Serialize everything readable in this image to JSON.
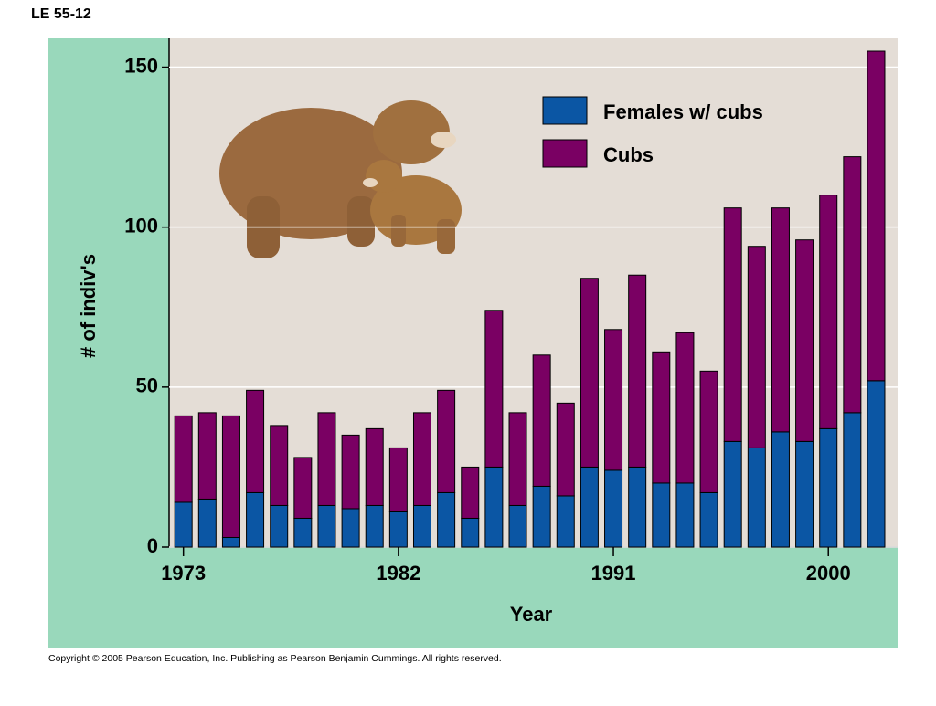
{
  "header": "LE 55-12",
  "footer": "Copyright ©  2005 Pearson Education, Inc. Publishing as Pearson Benjamin Cummings. All rights reserved.",
  "chart_data": {
    "type": "bar",
    "stacked": true,
    "x_label": "Year",
    "y_label": "# of indiv's",
    "x": [
      1973,
      1974,
      1975,
      1976,
      1977,
      1978,
      1979,
      1980,
      1981,
      1982,
      1983,
      1984,
      1985,
      1986,
      1987,
      1988,
      1989,
      1990,
      1991,
      1992,
      1993,
      1994,
      1995,
      1996,
      1997,
      1998,
      1999,
      2000,
      2001,
      2002
    ],
    "series": [
      {
        "name": "Females w/ cubs",
        "color": "#0b56a4",
        "values": [
          14,
          15,
          3,
          17,
          13,
          9,
          13,
          12,
          13,
          11,
          13,
          17,
          9,
          25,
          13,
          19,
          16,
          25,
          24,
          25,
          20,
          20,
          17,
          33,
          31,
          36,
          33,
          37,
          42,
          52
        ]
      },
      {
        "name": "Cubs",
        "color": "#7a0063",
        "values": [
          27,
          27,
          38,
          32,
          25,
          19,
          29,
          23,
          24,
          20,
          29,
          32,
          16,
          49,
          29,
          41,
          29,
          59,
          44,
          60,
          41,
          47,
          38,
          73,
          63,
          70,
          63,
          73,
          80,
          103
        ]
      }
    ],
    "xlim": [
      1972.4,
      2002.9
    ],
    "xticks": [
      1973,
      1982,
      1991,
      2000
    ],
    "ylim": [
      0,
      159
    ],
    "yticks": [
      0,
      50,
      100,
      150
    ],
    "grid": true
  }
}
